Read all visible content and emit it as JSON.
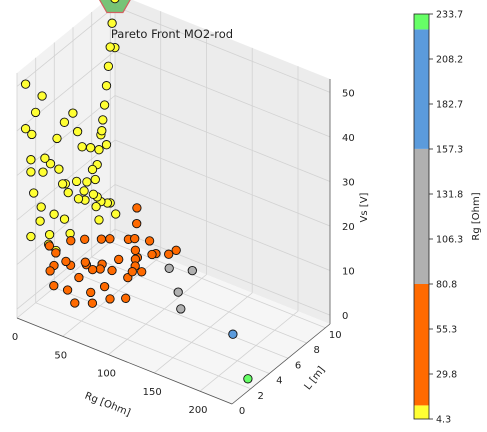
{
  "chart_data": {
    "type": "scatter",
    "projection": "3d",
    "title": "Pareto Front MO2-rod",
    "x_axis": {
      "label": "Rg [Ohm]",
      "ticks": [
        0,
        50,
        100,
        150,
        200
      ],
      "range": [
        0,
        235
      ]
    },
    "y_axis": {
      "label": "L [m]",
      "ticks": [
        0,
        2,
        4,
        6,
        8,
        10
      ],
      "range": [
        0,
        10.5
      ]
    },
    "z_axis": {
      "label": "Vs [V]",
      "ticks": [
        0,
        10,
        20,
        30,
        40,
        50
      ],
      "range": [
        -2,
        53
      ]
    },
    "grid": true,
    "colorbar": {
      "label": "Rg [Ohm]",
      "tick_labels": [
        "4.3",
        "29.8",
        "55.3",
        "80.8",
        "106.3",
        "131.8",
        "157.3",
        "182.7",
        "208.2",
        "233.7"
      ],
      "min": 4.3,
      "max": 233.7,
      "bands": [
        {
          "from": 4.3,
          "to": 12.0,
          "color": "#ffff33"
        },
        {
          "from": 12.0,
          "to": 80.8,
          "color": "#ff6a00"
        },
        {
          "from": 80.8,
          "to": 157.3,
          "color": "#b0b0b0"
        },
        {
          "from": 157.3,
          "to": 225.0,
          "color": "#5b9bdc"
        },
        {
          "from": 225.0,
          "to": 233.7,
          "color": "#66ff66"
        }
      ]
    },
    "highlight": {
      "shape": "hexagon",
      "color": "#6dbf6d",
      "edge_color": "#d06060"
    },
    "series": [
      {
        "points": [
          [
            5,
            10,
            53
          ],
          [
            5,
            9.7,
            48
          ],
          [
            5,
            9.5,
            43
          ],
          [
            5,
            9.3,
            39
          ],
          [
            5,
            9.1,
            35
          ],
          [
            5,
            8.9,
            31
          ],
          [
            5,
            8.7,
            28
          ],
          [
            5,
            8.5,
            25
          ],
          [
            5,
            8.3,
            22
          ],
          [
            5,
            8.1,
            19
          ],
          [
            5,
            7.9,
            16
          ],
          [
            5,
            7.7,
            13
          ],
          [
            4.3,
            0.5,
            50
          ],
          [
            4.3,
            0.5,
            40
          ],
          [
            6,
            1,
            38
          ],
          [
            5,
            1.5,
            42
          ],
          [
            7,
            2,
            45
          ],
          [
            5,
            2.5,
            30
          ],
          [
            6,
            3,
            28
          ],
          [
            8,
            3.5,
            33
          ],
          [
            5,
            4,
            25
          ],
          [
            7,
            4.5,
            21
          ],
          [
            5,
            5,
            18
          ],
          [
            9,
            5.5,
            20
          ],
          [
            6,
            6,
            15
          ],
          [
            8,
            6.5,
            14
          ],
          [
            5,
            7,
            17
          ],
          [
            10,
            7.5,
            11
          ],
          [
            6,
            8,
            12
          ],
          [
            5,
            8.5,
            10
          ],
          [
            7,
            9,
            9
          ],
          [
            5,
            9.5,
            8
          ],
          [
            8,
            1,
            25
          ],
          [
            6,
            2,
            20
          ],
          [
            10,
            3,
            17
          ],
          [
            5,
            6,
            30
          ],
          [
            9,
            7,
            25
          ],
          [
            11,
            4,
            36
          ],
          [
            5,
            3,
            12
          ],
          [
            7,
            5,
            9
          ],
          [
            9,
            2.5,
            11
          ],
          [
            6,
            4.5,
            13
          ],
          [
            5,
            1,
            15
          ],
          [
            8,
            8,
            7
          ],
          [
            10,
            6,
            27
          ],
          [
            6,
            9,
            22
          ],
          [
            7,
            0.8,
            30
          ],
          [
            11,
            9.5,
            6
          ],
          [
            5,
            5.5,
            35
          ],
          [
            8,
            2,
            28
          ],
          [
            9,
            4,
            22
          ],
          [
            6,
            7.5,
            19
          ],
          [
            12,
            3,
            9
          ],
          [
            5,
            10,
            42
          ],
          [
            7,
            6.5,
            16
          ],
          [
            10,
            1.5,
            18
          ],
          [
            6,
            8.5,
            26
          ],
          [
            8,
            0.7,
            33
          ]
        ]
      },
      {
        "points": [
          [
            20,
            2,
            8
          ],
          [
            28,
            3,
            7
          ],
          [
            35,
            4,
            6
          ],
          [
            42,
            5,
            5
          ],
          [
            50,
            6,
            5
          ],
          [
            58,
            7,
            4
          ],
          [
            66,
            8,
            4
          ],
          [
            74,
            9,
            3
          ],
          [
            30,
            1,
            6
          ],
          [
            40,
            1.5,
            5
          ],
          [
            55,
            2.5,
            4
          ],
          [
            60,
            3.5,
            4
          ],
          [
            45,
            4.5,
            5
          ],
          [
            65,
            5.5,
            3
          ],
          [
            70,
            6.5,
            3
          ],
          [
            25,
            7.5,
            5
          ],
          [
            35,
            8.5,
            4
          ],
          [
            48,
            9.5,
            3
          ],
          [
            22,
            2,
            11
          ],
          [
            33,
            2,
            10
          ],
          [
            44,
            3,
            9
          ],
          [
            52,
            3,
            8
          ],
          [
            63,
            4,
            7
          ],
          [
            75,
            5,
            6
          ],
          [
            68,
            6,
            5
          ],
          [
            58,
            7,
            6
          ],
          [
            47,
            8,
            6
          ],
          [
            39,
            9,
            7
          ],
          [
            29,
            10,
            8
          ],
          [
            18,
            4,
            10
          ],
          [
            23,
            5,
            9
          ],
          [
            31,
            6,
            8
          ],
          [
            37,
            3,
            5
          ],
          [
            53,
            1,
            4
          ],
          [
            62,
            2,
            3
          ],
          [
            71,
            3,
            3
          ],
          [
            78,
            4,
            2
          ],
          [
            50,
            8,
            2
          ],
          [
            60,
            9,
            2
          ],
          [
            72,
            10,
            2
          ],
          [
            15,
            2,
            12
          ],
          [
            26,
            1,
            9
          ]
        ]
      },
      {
        "points": [
          [
            95,
            7,
            5
          ],
          [
            110,
            8,
            4
          ],
          [
            115,
            6,
            3
          ],
          [
            128,
            5,
            2
          ]
        ]
      },
      {
        "points": [
          [
            185,
            5,
            1
          ]
        ]
      },
      {
        "points": [
          [
            232,
            2,
            0
          ]
        ]
      }
    ]
  }
}
